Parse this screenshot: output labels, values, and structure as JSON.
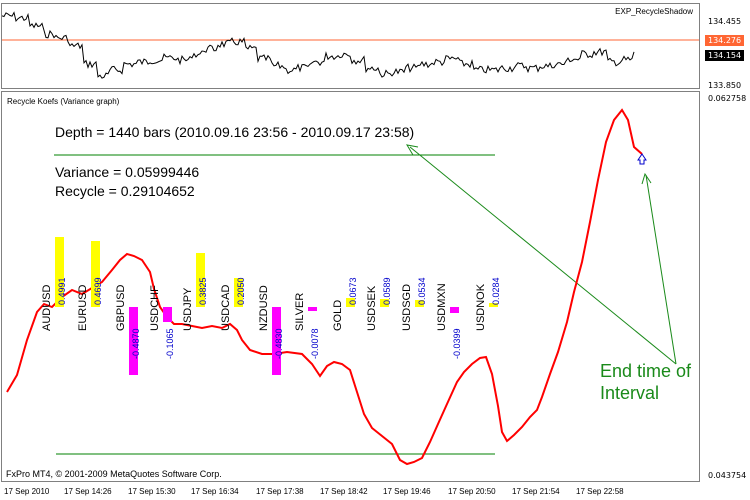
{
  "top_panel": {
    "title": "EXP_RecycleShadow",
    "price_high": "134.455",
    "price_current_red": "134.276",
    "price_current_black": "134.154",
    "price_low": "133.850"
  },
  "indicator": {
    "title": "Recycle Koefs (Variance graph)",
    "scale_top": "0.062758",
    "scale_bottom": "0.043754",
    "depth_text": "Depth = 1440 bars (2010.09.16 23:56 - 2010.09.17 23:58)",
    "variance_text": "Variance = 0.05999446",
    "recycle_text": "Recycle = 0.29104652",
    "annotation_line1": "End time of",
    "annotation_line2": "Interval",
    "footer": "FxPro MT4, © 2001-2009 MetaQuotes Software Corp."
  },
  "symbols": [
    {
      "name": "AUDUSD",
      "coef": "0.4991",
      "color": "#ffff00"
    },
    {
      "name": "EURUSD",
      "coef": "0.4699",
      "color": "#ffff00"
    },
    {
      "name": "GBPUSD",
      "coef": "-0.4870",
      "color": "#ff00ff"
    },
    {
      "name": "USDCHF",
      "coef": "-0.1065",
      "color": "#ff00ff"
    },
    {
      "name": "USDJPY",
      "coef": "0.3825",
      "color": "#ffff00"
    },
    {
      "name": "USDCAD",
      "coef": "0.2050",
      "color": "#ffff00"
    },
    {
      "name": "NZDUSD",
      "coef": "-0.4830",
      "color": "#ff00ff"
    },
    {
      "name": "SILVER",
      "coef": "-0.0078",
      "color": "#ff00ff"
    },
    {
      "name": "GOLD",
      "coef": "0.0673",
      "color": "#ffff00"
    },
    {
      "name": "USDSEK",
      "coef": "0.0589",
      "color": "#ffff00"
    },
    {
      "name": "USDSGD",
      "coef": "0.0534",
      "color": "#ffff00"
    },
    {
      "name": "USDMXN",
      "coef": "-0.0399",
      "color": "#ff00ff"
    },
    {
      "name": "USDNOK",
      "coef": "0.0284",
      "color": "#ffff00"
    }
  ],
  "x_axis": [
    "17 Sep 2010",
    "17 Sep 14:26",
    "17 Sep 15:30",
    "17 Sep 16:34",
    "17 Sep 17:38",
    "17 Sep 18:42",
    "17 Sep 19:46",
    "17 Sep 20:50",
    "17 Sep 21:54",
    "17 Sep 22:58"
  ],
  "colors": {
    "price_line": "#000000",
    "variance_line": "#ff0000",
    "level_line": "#008000",
    "arrow_line": "#1a8a1a",
    "level_marker": "#ff6633"
  }
}
